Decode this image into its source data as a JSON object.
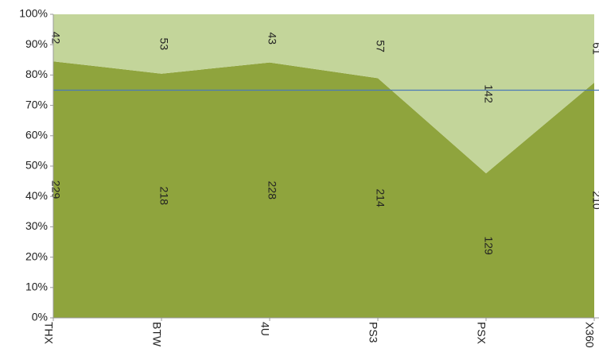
{
  "chart_data": {
    "type": "area",
    "stacking": "percent",
    "categories": [
      "THX",
      "BTW",
      "4U",
      "PS3",
      "PSX",
      "X360"
    ],
    "series": [
      {
        "color": "#8fa43d",
        "values": [
          229,
          218,
          228,
          214,
          129,
          210
        ]
      },
      {
        "color": "#c3d59a",
        "values": [
          42,
          53,
          43,
          57,
          142,
          61
        ]
      }
    ],
    "ylim": [
      0,
      100
    ],
    "yticks": [
      {
        "value": 0,
        "label": "0%"
      },
      {
        "value": 10,
        "label": "10%"
      },
      {
        "value": 20,
        "label": "20%"
      },
      {
        "value": 30,
        "label": "30%"
      },
      {
        "value": 40,
        "label": "40%"
      },
      {
        "value": 50,
        "label": "50%"
      },
      {
        "value": 60,
        "label": "60%"
      },
      {
        "value": 70,
        "label": "70%"
      },
      {
        "value": 80,
        "label": "80%"
      },
      {
        "value": 90,
        "label": "90%"
      },
      {
        "value": 100,
        "label": "100%"
      }
    ],
    "reference_line": {
      "value": 75,
      "color": "#4a7ab8"
    },
    "grid": false
  }
}
